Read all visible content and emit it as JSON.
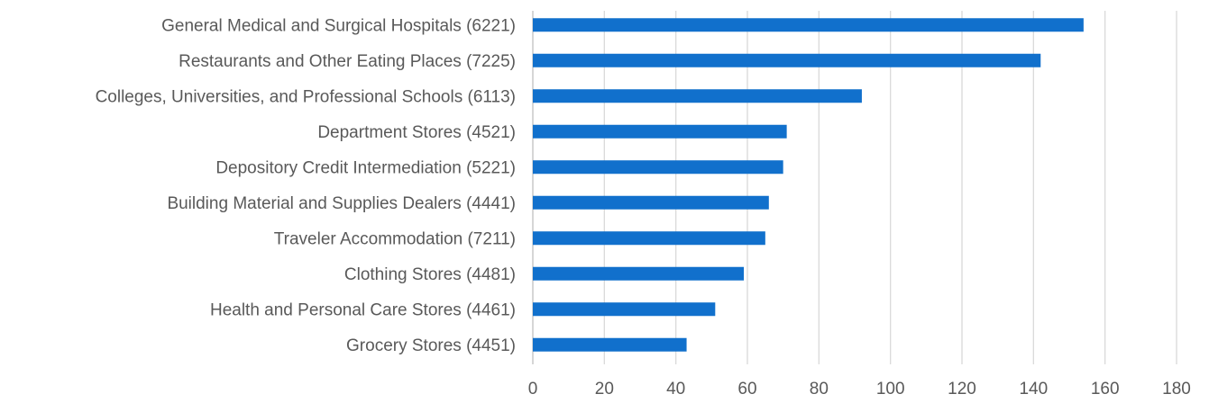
{
  "chart_data": {
    "type": "bar",
    "orientation": "horizontal",
    "categories": [
      "General Medical and Surgical Hospitals (6221)",
      "Restaurants and Other Eating Places (7225)",
      "Colleges, Universities, and Professional Schools (6113)",
      "Department Stores (4521)",
      "Depository Credit Intermediation (5221)",
      "Building Material and Supplies Dealers (4441)",
      "Traveler Accommodation (7211)",
      "Clothing Stores (4481)",
      "Health and Personal Care Stores (4461)",
      "Grocery Stores (4451)"
    ],
    "values": [
      154,
      142,
      92,
      71,
      70,
      66,
      65,
      59,
      51,
      43
    ],
    "xlim": [
      0,
      180
    ],
    "x_ticks": [
      "0",
      "20",
      "40",
      "60",
      "80",
      "100",
      "120",
      "140",
      "160",
      "180"
    ],
    "title": "",
    "xlabel": "",
    "ylabel": "",
    "grid": "vertical",
    "legend": "none",
    "colors": {
      "bar": "#1170cc",
      "grid": "#d9d9d9",
      "text": "#595959"
    }
  }
}
